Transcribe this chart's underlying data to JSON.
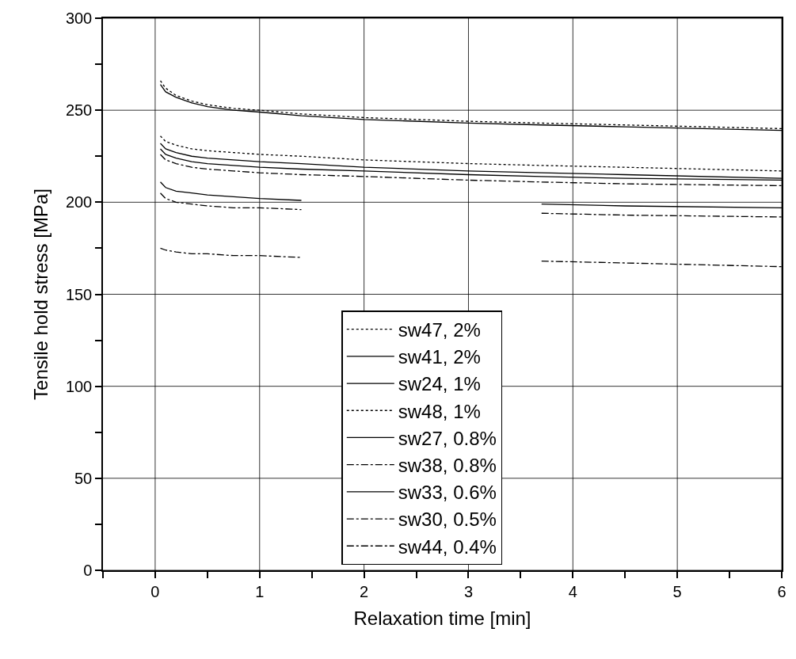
{
  "chart_data": {
    "type": "line",
    "xlabel": "Relaxation time [min]",
    "ylabel": "Tensile hold stress [MPa]",
    "x": [
      0.05,
      0.1,
      0.2,
      0.35,
      0.5,
      0.75,
      1,
      1.4,
      2,
      3,
      3.7,
      4.5,
      6
    ],
    "series": [
      {
        "name": "sw47, 2%",
        "color": "#000000",
        "line_style": "dotted",
        "values": [
          266,
          262,
          258,
          255,
          253,
          251,
          250,
          248,
          246,
          244,
          243,
          242,
          240
        ]
      },
      {
        "name": "sw41, 2%",
        "color": "#000000",
        "line_style": "solid",
        "values": [
          264,
          260,
          257,
          254,
          252,
          250,
          249,
          247,
          245,
          243,
          242,
          241,
          239
        ]
      },
      {
        "name": "sw24, 1%",
        "color": "#000000",
        "line_style": "solid",
        "values": [
          232,
          229,
          227,
          225,
          224,
          223,
          222,
          221,
          219,
          217,
          216,
          215,
          213
        ]
      },
      {
        "name": "sw48, 1%",
        "color": "#000000",
        "line_style": "dotted",
        "values": [
          236,
          233,
          231,
          229,
          228,
          227,
          226,
          225,
          223,
          221,
          220,
          219,
          217
        ]
      },
      {
        "name": "sw27, 0.8%",
        "color": "#000000",
        "line_style": "solid",
        "values": [
          229,
          226,
          224,
          222,
          221,
          220,
          219,
          218,
          217,
          215,
          214,
          213,
          212
        ]
      },
      {
        "name": "sw38, 0.8%",
        "color": "#000000",
        "line_style": "dashed",
        "values": [
          226,
          223,
          221,
          219,
          218,
          217,
          216,
          215,
          214,
          212,
          211,
          210,
          209
        ]
      },
      {
        "name": "sw33, 0.6%",
        "color": "#000000",
        "line_style": "solid",
        "values": [
          211,
          208,
          206,
          205,
          204,
          203,
          202,
          201,
          null,
          null,
          199,
          198,
          197
        ]
      },
      {
        "name": "sw30, 0.5%",
        "color": "#000000",
        "line_style": "dashed",
        "values": [
          205,
          202,
          200,
          199,
          198,
          197,
          197,
          196,
          null,
          null,
          194,
          193,
          192
        ]
      },
      {
        "name": "sw44, 0.4%",
        "color": "#000000",
        "line_style": "dashed",
        "values": [
          175,
          174,
          173,
          172,
          172,
          171,
          171,
          170,
          null,
          null,
          168,
          167,
          165
        ]
      }
    ],
    "xlim": [
      -0.5,
      6
    ],
    "ylim": [
      0,
      300
    ],
    "xticks": [
      {
        "value": -0.5,
        "label": null
      },
      0,
      {
        "value": 0.5,
        "label": null
      },
      1,
      {
        "value": 1.5,
        "label": null
      },
      2,
      {
        "value": 2.5,
        "label": null
      },
      3,
      {
        "value": 3.5,
        "label": null
      },
      4,
      {
        "value": 4.5,
        "label": null
      },
      5,
      {
        "value": 5.5,
        "label": null
      },
      6
    ],
    "yticks": [
      0,
      {
        "value": 25,
        "label": null
      },
      50,
      {
        "value": 75,
        "label": null
      },
      100,
      {
        "value": 125,
        "label": null
      },
      150,
      {
        "value": 175,
        "label": null
      },
      200,
      {
        "value": 225,
        "label": null
      },
      250,
      {
        "value": 275,
        "label": null
      },
      300
    ],
    "grid": true,
    "legend": "bottom",
    "marker": "none"
  }
}
